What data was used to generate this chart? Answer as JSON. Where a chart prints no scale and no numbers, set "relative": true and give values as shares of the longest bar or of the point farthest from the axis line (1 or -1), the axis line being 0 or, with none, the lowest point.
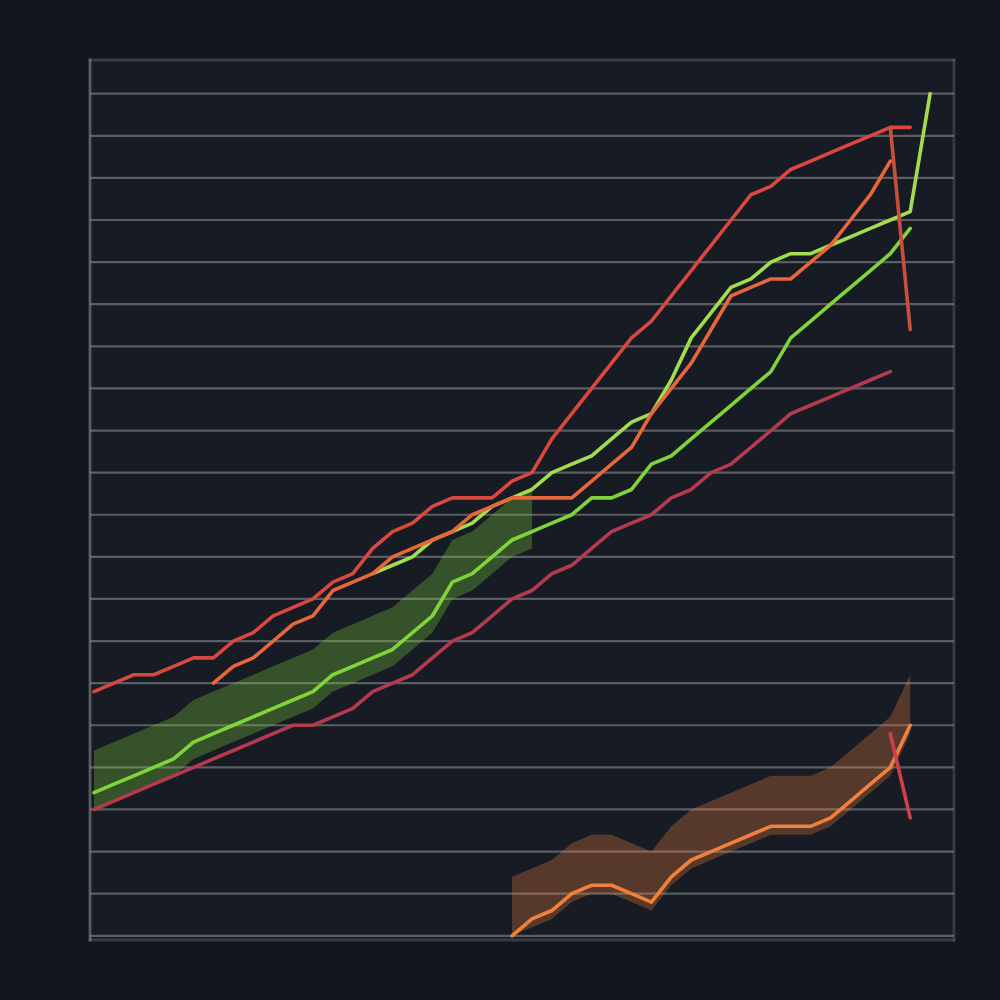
{
  "chart_data": {
    "type": "line",
    "relative": true,
    "grid": "y",
    "categories": [
      null,
      null,
      null,
      null,
      null,
      null,
      null,
      null,
      null,
      null,
      null,
      null,
      null,
      null,
      null,
      null,
      null,
      null,
      null,
      null,
      null,
      null,
      null,
      null,
      null,
      null,
      null,
      null,
      null,
      null,
      null,
      null,
      null,
      null,
      null,
      null,
      null,
      null,
      null,
      null,
      null,
      null,
      null
    ],
    "series": [
      {
        "color": "#d9473f",
        "values": [
          0.29,
          0.3,
          0.31,
          0.31,
          0.32,
          0.33,
          0.33,
          0.35,
          0.36,
          0.38,
          0.39,
          0.4,
          0.42,
          0.43,
          0.46,
          0.48,
          0.49,
          0.51,
          0.52,
          0.52,
          0.52,
          0.54,
          0.55,
          0.59,
          0.62,
          0.65,
          0.68,
          0.71,
          0.73,
          0.76,
          0.79,
          0.82,
          0.85,
          0.88,
          0.89,
          0.91,
          0.92,
          0.93,
          0.94,
          0.95,
          0.96,
          0.96,
          null
        ]
      },
      {
        "color": "#7fd43a",
        "values": [
          0.17,
          0.18,
          0.19,
          0.2,
          0.21,
          0.23,
          0.24,
          0.25,
          0.26,
          0.27,
          0.28,
          0.29,
          0.31,
          0.32,
          0.33,
          0.34,
          0.36,
          0.38,
          0.42,
          0.43,
          0.45,
          0.47,
          0.48,
          0.49,
          0.5,
          0.52,
          0.52,
          0.53,
          0.56,
          0.57,
          0.59,
          0.61,
          0.63,
          0.65,
          0.67,
          0.71,
          0.73,
          0.75,
          0.77,
          0.79,
          0.81,
          0.84,
          null
        ],
        "upper": [
          0.22,
          0.23,
          0.24,
          0.25,
          0.26,
          0.28,
          0.29,
          0.3,
          0.31,
          0.32,
          0.33,
          0.34,
          0.36,
          0.37,
          0.38,
          0.39,
          0.41,
          0.43,
          0.47,
          0.48,
          0.5,
          0.52,
          0.53,
          null,
          null,
          null,
          null,
          null,
          null,
          null,
          null,
          null,
          null,
          null,
          null,
          null,
          null,
          null,
          null,
          null,
          null,
          null,
          null
        ],
        "lower": [
          0.15,
          0.16,
          0.17,
          0.18,
          0.19,
          0.21,
          0.22,
          0.23,
          0.24,
          0.25,
          0.26,
          0.27,
          0.29,
          0.3,
          0.31,
          0.32,
          0.34,
          0.36,
          0.4,
          0.41,
          0.43,
          0.45,
          0.46,
          null,
          null,
          null,
          null,
          null,
          null,
          null,
          null,
          null,
          null,
          null,
          null,
          null,
          null,
          null,
          null,
          null,
          null,
          null,
          null
        ]
      },
      {
        "color": "#a3dc4e",
        "values": [
          null,
          null,
          null,
          null,
          null,
          null,
          null,
          null,
          null,
          null,
          null,
          null,
          null,
          null,
          0.43,
          0.44,
          0.45,
          0.47,
          0.48,
          0.49,
          0.51,
          0.52,
          0.53,
          0.55,
          0.56,
          0.57,
          0.59,
          0.61,
          0.62,
          0.66,
          0.71,
          0.74,
          0.77,
          0.78,
          0.8,
          0.81,
          0.81,
          0.82,
          0.83,
          0.84,
          0.85,
          0.86,
          1.0
        ]
      },
      {
        "color": "#e8673a",
        "values": [
          null,
          null,
          null,
          null,
          null,
          null,
          0.3,
          0.32,
          0.33,
          0.35,
          0.37,
          0.38,
          0.41,
          0.42,
          0.43,
          0.45,
          0.46,
          0.47,
          0.48,
          0.5,
          0.51,
          0.52,
          0.52,
          0.52,
          0.52,
          0.54,
          0.56,
          0.58,
          0.62,
          0.65,
          0.68,
          0.72,
          0.76,
          0.77,
          0.78,
          0.78,
          0.8,
          0.82,
          0.85,
          0.88,
          0.92,
          null,
          null
        ]
      },
      {
        "color": "#b53a4f",
        "values": [
          0.15,
          0.16,
          0.17,
          0.18,
          0.19,
          0.2,
          0.21,
          0.22,
          0.23,
          0.24,
          0.25,
          0.25,
          0.26,
          0.27,
          0.29,
          0.3,
          0.31,
          0.33,
          0.35,
          0.36,
          0.38,
          0.4,
          0.41,
          0.43,
          0.44,
          0.46,
          0.48,
          0.49,
          0.5,
          0.52,
          0.53,
          0.55,
          0.56,
          0.58,
          0.6,
          0.62,
          0.63,
          0.64,
          0.65,
          0.66,
          0.67,
          null,
          null
        ]
      },
      {
        "color": "#f0803a",
        "values": [
          null,
          null,
          null,
          null,
          null,
          null,
          null,
          null,
          null,
          null,
          null,
          null,
          null,
          null,
          null,
          null,
          null,
          null,
          null,
          null,
          null,
          0.0,
          0.02,
          0.03,
          0.05,
          0.06,
          0.06,
          0.05,
          0.04,
          0.07,
          0.09,
          0.1,
          0.11,
          0.12,
          0.13,
          0.13,
          0.13,
          0.14,
          0.16,
          0.18,
          0.2,
          0.25,
          null
        ],
        "upper": [
          null,
          null,
          null,
          null,
          null,
          null,
          null,
          null,
          null,
          null,
          null,
          null,
          null,
          null,
          null,
          null,
          null,
          null,
          null,
          null,
          null,
          0.07,
          0.08,
          0.09,
          0.11,
          0.12,
          0.12,
          0.11,
          0.1,
          0.13,
          0.15,
          0.16,
          0.17,
          0.18,
          0.19,
          0.19,
          0.19,
          0.2,
          0.22,
          0.24,
          0.26,
          0.31,
          null
        ],
        "lower": [
          null,
          null,
          null,
          null,
          null,
          null,
          null,
          null,
          null,
          null,
          null,
          null,
          null,
          null,
          null,
          null,
          null,
          null,
          null,
          null,
          null,
          0.0,
          0.01,
          0.02,
          0.04,
          0.05,
          0.05,
          0.04,
          0.03,
          0.06,
          0.08,
          0.09,
          0.1,
          0.11,
          0.12,
          0.12,
          0.12,
          0.13,
          0.15,
          0.17,
          0.19,
          0.24,
          null
        ]
      },
      {
        "color": "#d0404a",
        "values": [
          null,
          null,
          null,
          null,
          null,
          null,
          null,
          null,
          null,
          null,
          null,
          null,
          null,
          null,
          null,
          null,
          null,
          null,
          null,
          null,
          null,
          null,
          null,
          null,
          null,
          null,
          null,
          null,
          null,
          null,
          null,
          null,
          null,
          null,
          null,
          null,
          null,
          null,
          null,
          null,
          0.24,
          0.14,
          null
        ]
      },
      {
        "color": "#c8503a",
        "values": [
          null,
          null,
          null,
          null,
          null,
          null,
          null,
          null,
          null,
          null,
          null,
          null,
          null,
          null,
          null,
          null,
          null,
          null,
          null,
          null,
          null,
          null,
          null,
          null,
          null,
          null,
          null,
          null,
          null,
          null,
          null,
          null,
          null,
          null,
          null,
          null,
          null,
          null,
          null,
          null,
          0.96,
          0.72,
          null
        ]
      }
    ]
  }
}
